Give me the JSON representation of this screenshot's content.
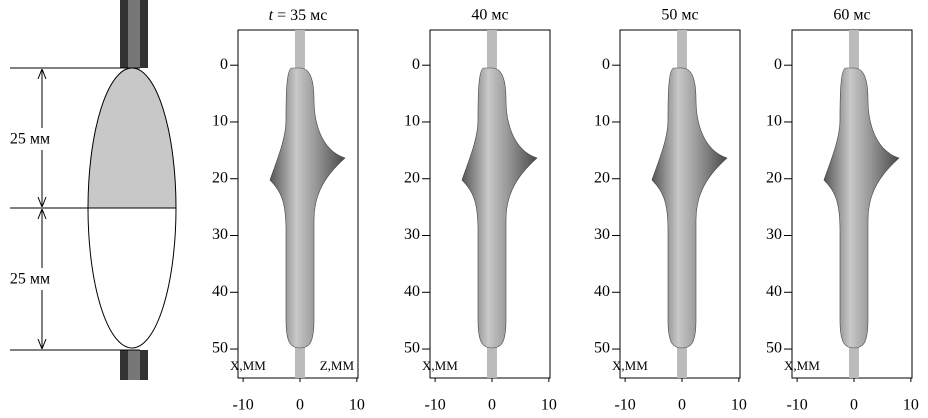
{
  "schematic": {
    "upper_label": "25 мм",
    "lower_label": "25 мм"
  },
  "panels": [
    {
      "title_var": "t",
      "title": "= 35 мс",
      "x_label": "X,ММ",
      "z_label": "Z,ММ",
      "xlim": [
        -10.9,
        10.2
      ],
      "ylim": [
        -6.2,
        55.1
      ],
      "xticks": [
        -10,
        0,
        10
      ],
      "yticks": [
        0,
        10,
        20,
        30,
        40,
        50
      ]
    },
    {
      "title": "40 мс",
      "x_label": "X,ММ",
      "xlim": [
        -10.9,
        10.2
      ],
      "ylim": [
        -6.2,
        55.1
      ],
      "xticks": [
        -10,
        0,
        10
      ],
      "yticks": [
        0,
        10,
        20,
        30,
        40,
        50
      ]
    },
    {
      "title": "50 мс",
      "x_label": "X,ММ",
      "xlim": [
        -10.9,
        10.2
      ],
      "ylim": [
        -6.2,
        55.1
      ],
      "xticks": [
        -10,
        0,
        10
      ],
      "yticks": [
        0,
        10,
        20,
        30,
        40,
        50
      ]
    },
    {
      "title": "60 мс",
      "x_label": "X,ММ",
      "xlim": [
        -10.9,
        10.2
      ],
      "ylim": [
        -6.2,
        55.1
      ],
      "xticks": [
        -10,
        0,
        10
      ],
      "yticks": [
        0,
        10,
        20,
        30,
        40,
        50
      ]
    }
  ]
}
